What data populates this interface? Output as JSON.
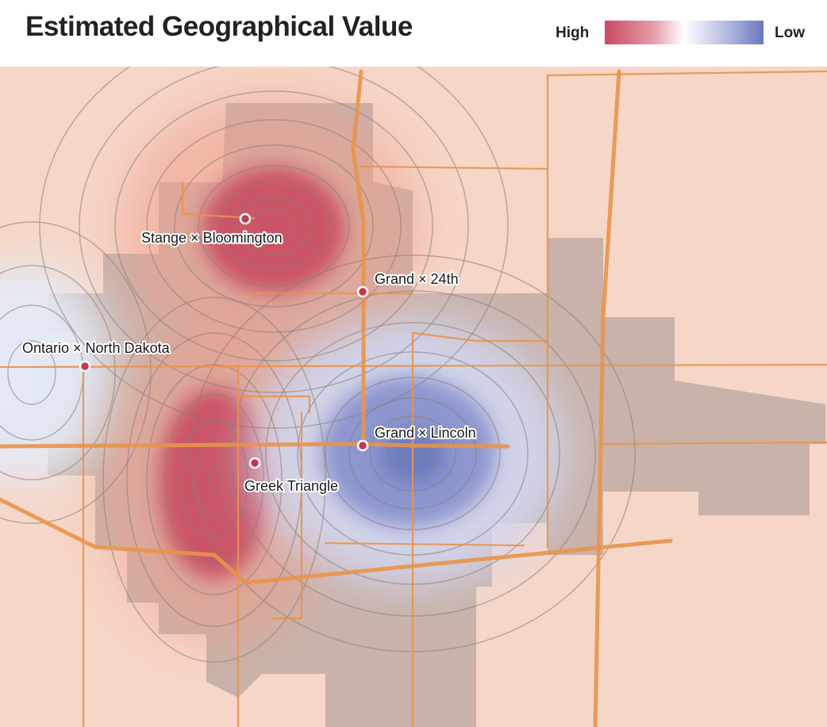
{
  "title": "Estimated Geographical Value",
  "legend": {
    "high_label": "High",
    "low_label": "Low",
    "high_color": "#c84a63",
    "low_color": "#6b78bd"
  },
  "map": {
    "background_color": "#f6d6c7",
    "road_color": "#e8934a",
    "points": [
      {
        "label": "Stange × Bloomington"
      },
      {
        "label": "Grand × 24th"
      },
      {
        "label": "Ontario × North Dakota"
      },
      {
        "label": "Grand × Lincoln"
      },
      {
        "label": "Greek Triangle"
      }
    ]
  }
}
